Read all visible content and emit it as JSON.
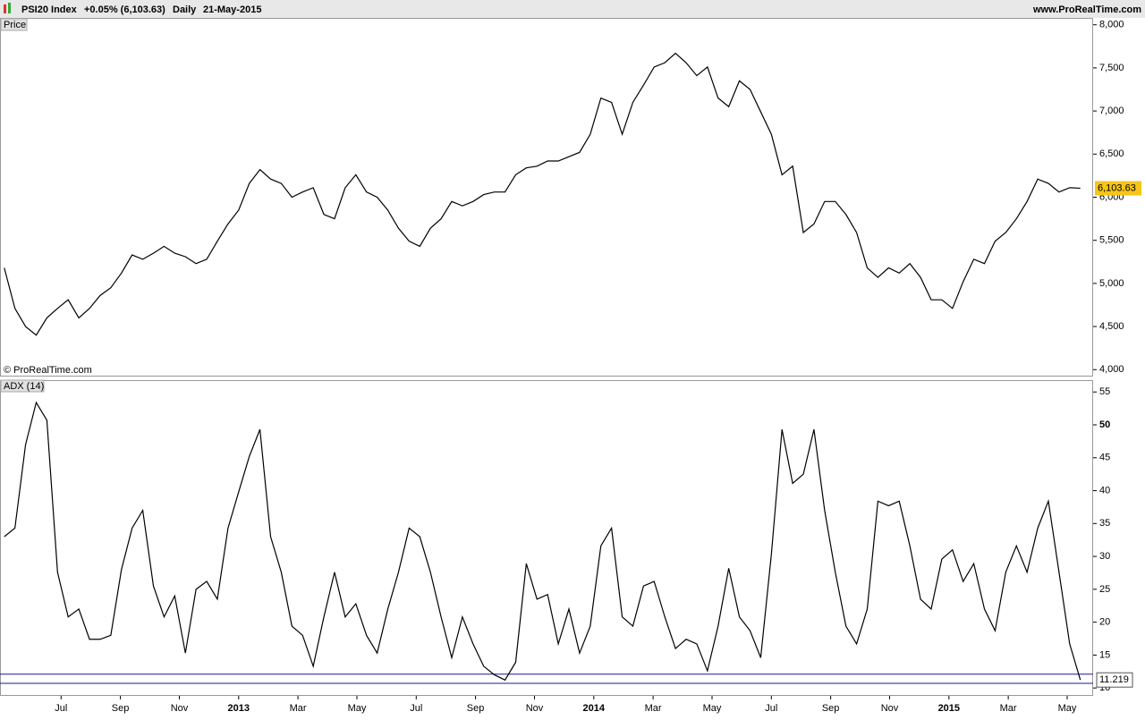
{
  "header": {
    "instrument": "PSI20 Index",
    "change": "+0.05% (6,103.63)",
    "period": "Daily",
    "date": "21-May-2015",
    "site": "www.ProRealTime.com"
  },
  "chart_data": [
    {
      "type": "line",
      "panel_label": "Price",
      "copyright": "© ProRealTime.com",
      "color": "#000000",
      "x": [
        2012.34,
        2012.37,
        2012.4,
        2012.43,
        2012.46,
        2012.49,
        2012.52,
        2012.55,
        2012.58,
        2012.61,
        2012.64,
        2012.67,
        2012.7,
        2012.73,
        2012.76,
        2012.79,
        2012.82,
        2012.85,
        2012.88,
        2012.91,
        2012.94,
        2012.97,
        2013.0,
        2013.03,
        2013.06,
        2013.09,
        2013.12,
        2013.15,
        2013.18,
        2013.21,
        2013.24,
        2013.27,
        2013.3,
        2013.33,
        2013.36,
        2013.39,
        2013.42,
        2013.45,
        2013.48,
        2013.51,
        2013.54,
        2013.57,
        2013.6,
        2013.63,
        2013.66,
        2013.69,
        2013.72,
        2013.75,
        2013.78,
        2013.81,
        2013.84,
        2013.87,
        2013.9,
        2013.93,
        2013.96,
        2013.99,
        2014.02,
        2014.05,
        2014.08,
        2014.11,
        2014.14,
        2014.17,
        2014.2,
        2014.23,
        2014.26,
        2014.29,
        2014.32,
        2014.35,
        2014.38,
        2014.41,
        2014.44,
        2014.47,
        2014.5,
        2014.53,
        2014.56,
        2014.59,
        2014.62,
        2014.65,
        2014.68,
        2014.71,
        2014.74,
        2014.77,
        2014.8,
        2014.83,
        2014.86,
        2014.89,
        2014.92,
        2014.95,
        2014.98,
        2015.01,
        2015.04,
        2015.07,
        2015.1,
        2015.13,
        2015.16,
        2015.19,
        2015.22,
        2015.25,
        2015.28,
        2015.31,
        2015.34,
        2015.37
      ],
      "values": [
        5180,
        4710,
        4500,
        4400,
        4600,
        4710,
        4810,
        4600,
        4710,
        4860,
        4950,
        5120,
        5330,
        5280,
        5350,
        5430,
        5350,
        5310,
        5230,
        5280,
        5490,
        5690,
        5850,
        6160,
        6320,
        6210,
        6160,
        6000,
        6060,
        6110,
        5800,
        5750,
        6110,
        6260,
        6060,
        6000,
        5850,
        5640,
        5490,
        5430,
        5640,
        5750,
        5950,
        5900,
        5950,
        6030,
        6060,
        6060,
        6260,
        6340,
        6360,
        6420,
        6420,
        6470,
        6520,
        6730,
        7150,
        7100,
        6730,
        7100,
        7300,
        7510,
        7560,
        7670,
        7560,
        7410,
        7510,
        7150,
        7050,
        7350,
        7250,
        6990,
        6730,
        6260,
        6360,
        5590,
        5690,
        5950,
        5950,
        5800,
        5590,
        5180,
        5070,
        5180,
        5120,
        5230,
        5070,
        4810,
        4810,
        4710,
        5020,
        5280,
        5230,
        5490,
        5590,
        5750,
        5950,
        6210,
        6160,
        6060,
        6110,
        6104
      ],
      "last_value": 6103.63,
      "last_label": "6,103.63",
      "last_color": "#f5c518",
      "xlim": [
        2012.328,
        2015.406
      ],
      "ylim": [
        3930,
        8080
      ],
      "yticks": [
        {
          "value": 4000,
          "label": "4,000"
        },
        {
          "value": 4500,
          "label": "4,500"
        },
        {
          "value": 5000,
          "label": "5,000"
        },
        {
          "value": 5500,
          "label": "5,500"
        },
        {
          "value": 6000,
          "label": "6,000"
        },
        {
          "value": 6500,
          "label": "6,500"
        },
        {
          "value": 7000,
          "label": "7,000"
        },
        {
          "value": 7500,
          "label": "7,500"
        },
        {
          "value": 8000,
          "label": "8,000"
        }
      ]
    },
    {
      "type": "line",
      "panel_label": "ADX (14)",
      "color": "#000000",
      "x": [
        2012.34,
        2012.37,
        2012.4,
        2012.43,
        2012.46,
        2012.49,
        2012.52,
        2012.55,
        2012.58,
        2012.61,
        2012.64,
        2012.67,
        2012.7,
        2012.73,
        2012.76,
        2012.79,
        2012.82,
        2012.85,
        2012.88,
        2012.91,
        2012.94,
        2012.97,
        2013.0,
        2013.03,
        2013.06,
        2013.09,
        2013.12,
        2013.15,
        2013.18,
        2013.21,
        2013.24,
        2013.27,
        2013.3,
        2013.33,
        2013.36,
        2013.39,
        2013.42,
        2013.45,
        2013.48,
        2013.51,
        2013.54,
        2013.57,
        2013.6,
        2013.63,
        2013.66,
        2013.69,
        2013.72,
        2013.75,
        2013.78,
        2013.81,
        2013.84,
        2013.87,
        2013.9,
        2013.93,
        2013.96,
        2013.99,
        2014.02,
        2014.05,
        2014.08,
        2014.11,
        2014.14,
        2014.17,
        2014.2,
        2014.23,
        2014.26,
        2014.29,
        2014.32,
        2014.35,
        2014.38,
        2014.41,
        2014.44,
        2014.47,
        2014.5,
        2014.53,
        2014.56,
        2014.59,
        2014.62,
        2014.65,
        2014.68,
        2014.71,
        2014.74,
        2014.77,
        2014.8,
        2014.83,
        2014.86,
        2014.89,
        2014.92,
        2014.95,
        2014.98,
        2015.01,
        2015.04,
        2015.07,
        2015.1,
        2015.13,
        2015.16,
        2015.19,
        2015.22,
        2015.25,
        2015.28,
        2015.31,
        2015.34,
        2015.37
      ],
      "values": [
        33,
        34.3,
        47,
        53.4,
        50.7,
        27.6,
        20.8,
        22,
        17.4,
        17.4,
        18,
        28,
        34.3,
        37,
        25.5,
        20.8,
        24,
        15.3,
        25,
        26.2,
        23.5,
        34.3,
        39.8,
        45.2,
        49.3,
        33,
        27.6,
        19.4,
        18,
        13.3,
        20.8,
        27.6,
        20.8,
        22.8,
        18,
        15.3,
        22,
        27.6,
        34.3,
        33,
        27.6,
        20.8,
        14.6,
        20.8,
        16.7,
        13.3,
        12,
        11.2,
        13.9,
        28.9,
        23.5,
        24.2,
        16.7,
        22,
        15.3,
        19.4,
        31.6,
        34.3,
        20.8,
        19.4,
        25.5,
        26.2,
        20.8,
        16,
        17.4,
        16.7,
        12.6,
        19.4,
        28.2,
        20.8,
        18.7,
        14.6,
        30.3,
        49.3,
        41.1,
        42.5,
        49.3,
        37,
        27.6,
        19.4,
        16.7,
        22,
        38.4,
        37.7,
        38.4,
        31.6,
        23.5,
        22,
        29.6,
        31,
        26.2,
        28.9,
        22,
        18.7,
        27.6,
        31.6,
        27.6,
        34.3,
        38.4,
        27.6,
        16.7,
        11.219
      ],
      "last_value": 11.219,
      "reference_lines": [
        12.1,
        10.7
      ],
      "reference_color": "#1a1a9c",
      "xlim": [
        2012.328,
        2015.406
      ],
      "ylim": [
        8.8,
        56.8
      ],
      "yticks": [
        10,
        15,
        20,
        25,
        30,
        35,
        40,
        45,
        50,
        55
      ],
      "xticks": [
        {
          "value": 2012.5,
          "label": "Jul"
        },
        {
          "value": 2012.667,
          "label": "Sep"
        },
        {
          "value": 2012.833,
          "label": "Nov"
        },
        {
          "value": 2013,
          "label": "2013"
        },
        {
          "value": 2013.167,
          "label": "Mar"
        },
        {
          "value": 2013.333,
          "label": "May"
        },
        {
          "value": 2013.5,
          "label": "Jul"
        },
        {
          "value": 2013.667,
          "label": "Sep"
        },
        {
          "value": 2013.833,
          "label": "Nov"
        },
        {
          "value": 2014,
          "label": "2014"
        },
        {
          "value": 2014.167,
          "label": "Mar"
        },
        {
          "value": 2014.333,
          "label": "May"
        },
        {
          "value": 2014.5,
          "label": "Jul"
        },
        {
          "value": 2014.667,
          "label": "Sep"
        },
        {
          "value": 2014.833,
          "label": "Nov"
        },
        {
          "value": 2015,
          "label": "2015"
        },
        {
          "value": 2015.167,
          "label": "Mar"
        },
        {
          "value": 2015.333,
          "label": "May"
        }
      ]
    }
  ]
}
